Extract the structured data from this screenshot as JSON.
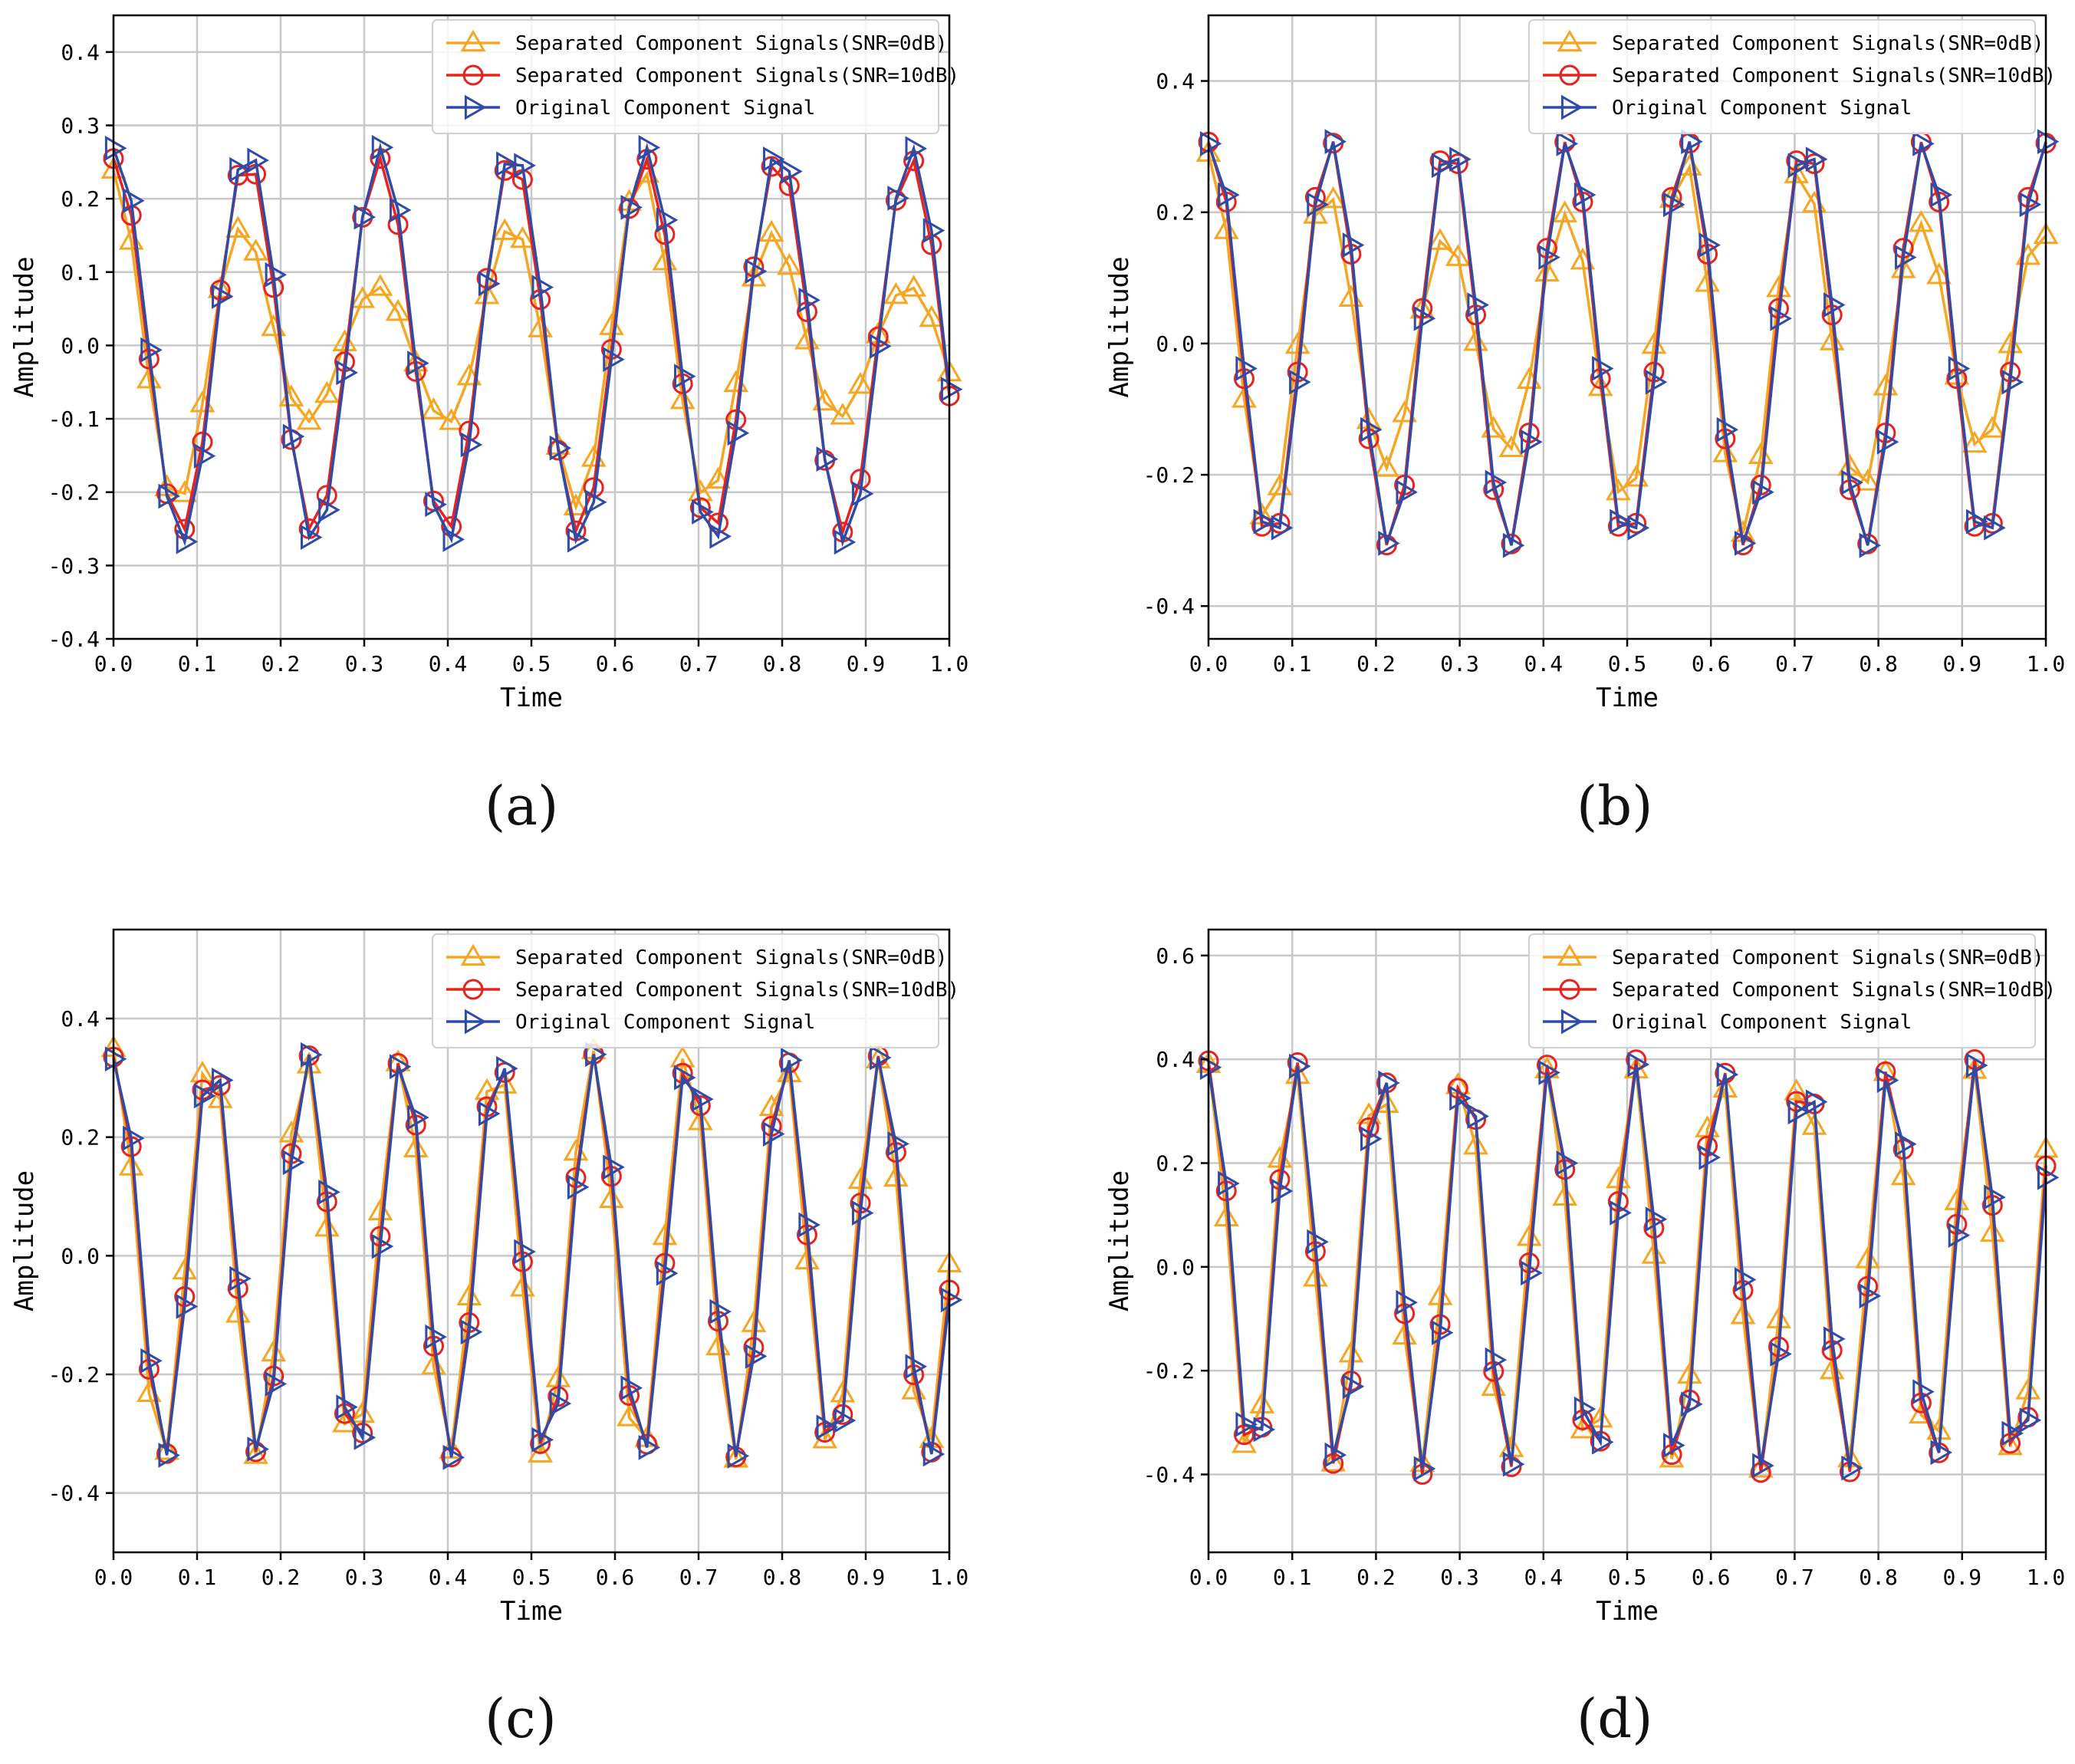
{
  "figure": {
    "series_styles": {
      "snr0": {
        "color": "#F5A623",
        "marker": "triangle-up"
      },
      "snr10": {
        "color": "#E8231F",
        "marker": "circle"
      },
      "orig": {
        "color": "#2E4BA8",
        "marker": "triangle-right"
      }
    }
  },
  "chart_data": [
    {
      "panel": "(a)",
      "type": "line",
      "xlabel": "Time",
      "ylabel": "Amplitude",
      "xlim": [
        0.0,
        1.0
      ],
      "ylim": [
        -0.4,
        0.45
      ],
      "xticks": [
        0.0,
        0.1,
        0.2,
        0.3,
        0.4,
        0.5,
        0.6,
        0.7,
        0.8,
        0.9,
        1.0
      ],
      "xtick_labels": [
        "0.0",
        "0.1",
        "0.2",
        "0.3",
        "0.4",
        "0.5",
        "0.6",
        "0.7",
        "0.8",
        "0.9",
        "1.0"
      ],
      "yticks": [
        -0.4,
        -0.3,
        -0.2,
        -0.1,
        0.0,
        0.1,
        0.2,
        0.3,
        0.4
      ],
      "ytick_labels": [
        "-0.4",
        "-0.3",
        "-0.2",
        "-0.1",
        "0.0",
        "0.1",
        "0.2",
        "0.3",
        "0.4"
      ],
      "grid": true,
      "legend_position": "top-right",
      "signal_model": {
        "freq": 6.3,
        "phase": 1.48,
        "snr0_amp_min": 0.08
      },
      "series": [
        {
          "key": "snr0",
          "name": "Separated Component Signals(SNR=0dB)",
          "amplitude": 0.24
        },
        {
          "key": "snr10",
          "name": "Separated Component Signals(SNR=10dB)",
          "amplitude": 0.255
        },
        {
          "key": "orig",
          "name": "Original Component Signal",
          "amplitude": 0.27
        }
      ]
    },
    {
      "panel": "(b)",
      "type": "line",
      "xlabel": "Time",
      "ylabel": "Amplitude",
      "xlim": [
        0.0,
        1.0
      ],
      "ylim": [
        -0.45,
        0.5
      ],
      "xticks": [
        0.0,
        0.1,
        0.2,
        0.3,
        0.4,
        0.5,
        0.6,
        0.7,
        0.8,
        0.9,
        1.0
      ],
      "xtick_labels": [
        "0.0",
        "0.1",
        "0.2",
        "0.3",
        "0.4",
        "0.5",
        "0.6",
        "0.7",
        "0.8",
        "0.9",
        "1.0"
      ],
      "yticks": [
        -0.4,
        -0.2,
        0.0,
        0.2,
        0.4
      ],
      "ytick_labels": [
        "-0.4",
        "-0.2",
        "0.0",
        "0.2",
        "0.4"
      ],
      "grid": true,
      "legend_position": "top-right",
      "signal_model": {
        "freq": 7.05,
        "phase": 1.38,
        "snr0_amp_min": 0.16
      },
      "series": [
        {
          "key": "snr0",
          "name": "Separated Component Signals(SNR=0dB)",
          "amplitude": 0.29
        },
        {
          "key": "snr10",
          "name": "Separated Component Signals(SNR=10dB)",
          "amplitude": 0.31
        },
        {
          "key": "orig",
          "name": "Original Component Signal",
          "amplitude": 0.31
        }
      ]
    },
    {
      "panel": "(c)",
      "type": "line",
      "xlabel": "Time",
      "ylabel": "Amplitude",
      "xlim": [
        0.0,
        1.0
      ],
      "ylim": [
        -0.5,
        0.55
      ],
      "xticks": [
        0.0,
        0.1,
        0.2,
        0.3,
        0.4,
        0.5,
        0.6,
        0.7,
        0.8,
        0.9,
        1.0
      ],
      "xtick_labels": [
        "0.0",
        "0.1",
        "0.2",
        "0.3",
        "0.4",
        "0.5",
        "0.6",
        "0.7",
        "0.8",
        "0.9",
        "1.0"
      ],
      "yticks": [
        -0.4,
        -0.2,
        0.0,
        0.2,
        0.4
      ],
      "ytick_labels": [
        "-0.4",
        "-0.2",
        "0.0",
        "0.2",
        "0.4"
      ],
      "grid": true,
      "legend_position": "top-right",
      "signal_model": {
        "freq": 8.75,
        "phase": 1.35,
        "snr0_amp_min": 0.33
      },
      "series": [
        {
          "key": "snr0",
          "name": "Separated Component Signals(SNR=0dB)",
          "amplitude": 0.35
        },
        {
          "key": "snr10",
          "name": "Separated Component Signals(SNR=10dB)",
          "amplitude": 0.34
        },
        {
          "key": "orig",
          "name": "Original Component Signal",
          "amplitude": 0.34
        }
      ]
    },
    {
      "panel": "(d)",
      "type": "line",
      "xlabel": "Time",
      "ylabel": "Amplitude",
      "xlim": [
        0.0,
        1.0
      ],
      "ylim": [
        -0.55,
        0.65
      ],
      "xticks": [
        0.0,
        0.1,
        0.2,
        0.3,
        0.4,
        0.5,
        0.6,
        0.7,
        0.8,
        0.9,
        1.0
      ],
      "xtick_labels": [
        "0.0",
        "0.1",
        "0.2",
        "0.3",
        "0.4",
        "0.5",
        "0.6",
        "0.7",
        "0.8",
        "0.9",
        "1.0"
      ],
      "yticks": [
        -0.4,
        -0.2,
        0.0,
        0.2,
        0.4,
        0.6
      ],
      "ytick_labels": [
        "-0.4",
        "-0.2",
        "0.0",
        "0.2",
        "0.4",
        "0.6"
      ],
      "grid": true,
      "legend_position": "top-right",
      "signal_model": {
        "freq": 9.85,
        "phase": 1.4,
        "snr0_amp_min": 0.38
      },
      "series": [
        {
          "key": "snr0",
          "name": "Separated Component Signals(SNR=0dB)",
          "amplitude": 0.39
        },
        {
          "key": "snr10",
          "name": "Separated Component Signals(SNR=10dB)",
          "amplitude": 0.4
        },
        {
          "key": "orig",
          "name": "Original Component Signal",
          "amplitude": 0.39
        }
      ]
    }
  ]
}
